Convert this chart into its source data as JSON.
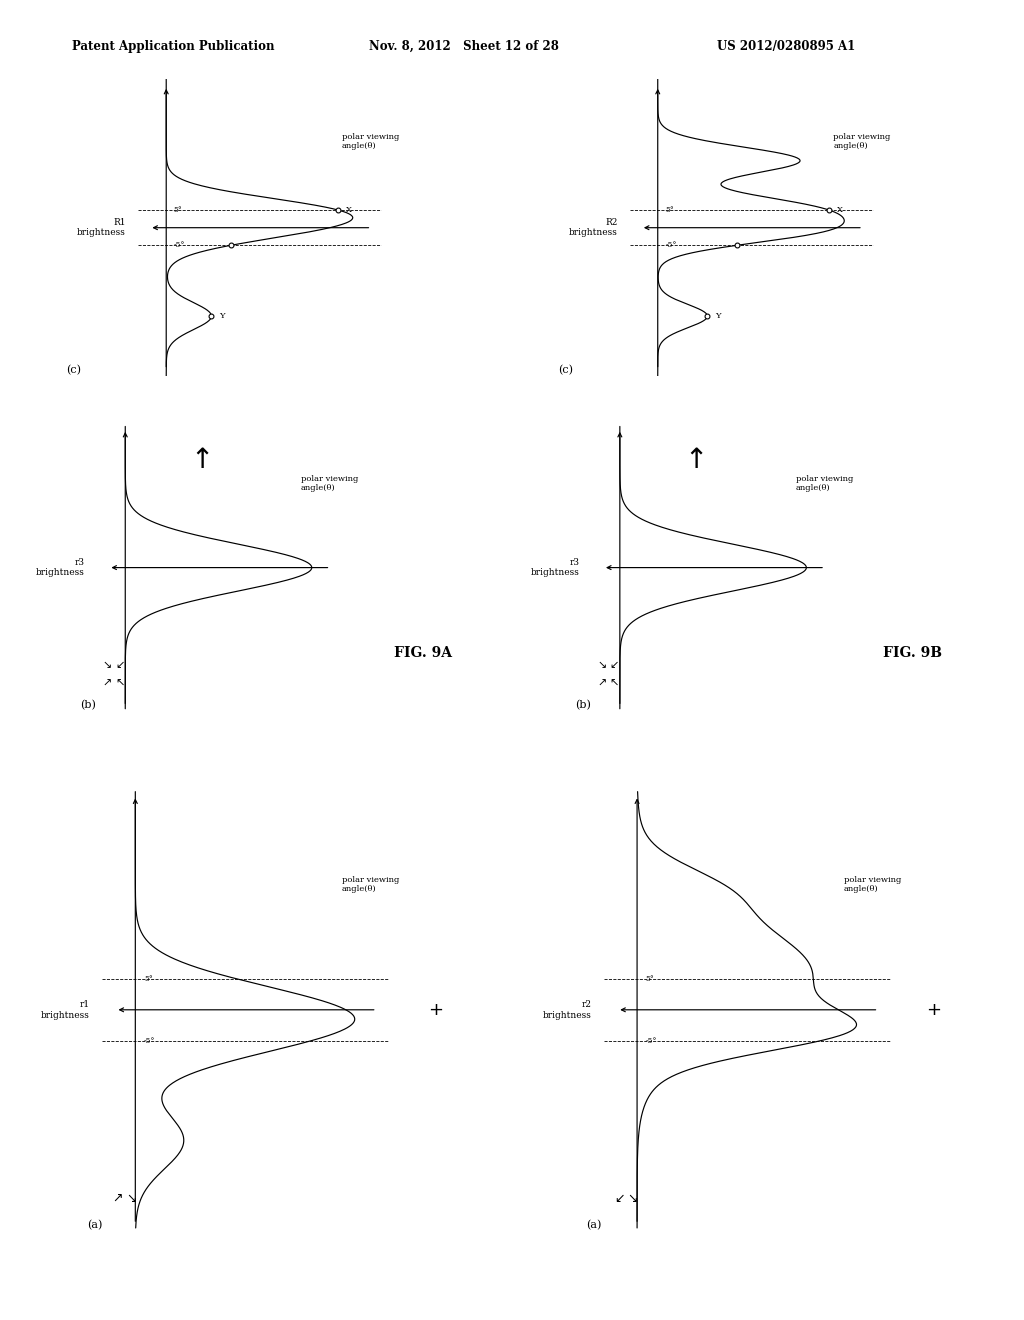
{
  "bg_color": "#ffffff",
  "header_left": "Patent Application Publication",
  "header_mid": "Nov. 8, 2012   Sheet 12 of 28",
  "header_right": "US 2012/0280895 A1",
  "fig9A_label": "FIG. 9A",
  "fig9B_label": "FIG. 9B"
}
